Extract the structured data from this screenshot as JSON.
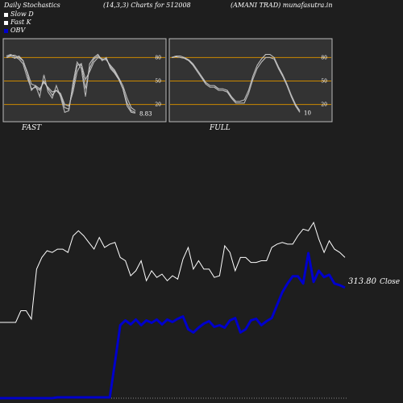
{
  "header": {
    "left": "Daily Stochastics",
    "center": "(14,3,3) Charts for 512008",
    "right": "(AMANI TRAD) munafasutra.in"
  },
  "legend": {
    "items": [
      {
        "label": "Slow  D",
        "color": "#ffffff"
      },
      {
        "label": "Fast K",
        "color": "#ffffff"
      },
      {
        "label": "OBV",
        "color": "#0000cc"
      }
    ]
  },
  "colors": {
    "background": "#1e1e1e",
    "panel": "#333333",
    "panel_border": "#bbbbbb",
    "level_line": "#cc8800",
    "line": "#ffffff",
    "obv": "#0000cc"
  },
  "chart_data": [
    {
      "type": "line",
      "title": "FAST",
      "ylim": [
        0,
        100
      ],
      "levels": [
        20,
        50,
        80
      ],
      "level_labels": [
        "20",
        "50",
        "80"
      ],
      "last_value_label": "8.83",
      "series": [
        {
          "values": [
            80,
            82,
            79,
            82,
            76,
            60,
            38,
            44,
            30,
            58,
            36,
            28,
            44,
            30,
            10,
            12,
            48,
            74,
            66,
            30,
            72,
            80,
            84,
            76,
            80,
            66,
            60,
            52,
            40,
            18,
            10,
            8.83
          ]
        },
        {
          "values": [
            82,
            84,
            81,
            78,
            72,
            54,
            40,
            42,
            38,
            50,
            40,
            32,
            38,
            32,
            16,
            14,
            42,
            70,
            72,
            40,
            66,
            78,
            82,
            78,
            78,
            68,
            62,
            52,
            40,
            22,
            12,
            10
          ]
        },
        {
          "values": [
            80,
            83,
            83,
            80,
            76,
            62,
            46,
            44,
            40,
            48,
            42,
            36,
            38,
            34,
            20,
            18,
            36,
            62,
            72,
            52,
            62,
            74,
            80,
            78,
            77,
            70,
            64,
            54,
            44,
            28,
            16,
            12
          ]
        }
      ]
    },
    {
      "type": "line",
      "title": "FULL",
      "ylim": [
        0,
        100
      ],
      "levels": [
        20,
        50,
        80
      ],
      "level_labels": [
        "20",
        "50",
        "80"
      ],
      "last_value_label": "10",
      "series": [
        {
          "values": [
            80,
            81,
            80,
            79,
            76,
            70,
            62,
            54,
            46,
            42,
            42,
            38,
            38,
            36,
            28,
            22,
            22,
            22,
            34,
            52,
            66,
            74,
            80,
            80,
            78,
            66,
            56,
            44,
            30,
            18,
            10
          ]
        },
        {
          "values": [
            80,
            82,
            82,
            80,
            77,
            72,
            64,
            56,
            48,
            44,
            44,
            40,
            40,
            38,
            30,
            24,
            24,
            26,
            38,
            56,
            70,
            78,
            84,
            84,
            80,
            68,
            58,
            46,
            32,
            20,
            12
          ]
        }
      ]
    },
    {
      "type": "line",
      "title": "",
      "last_value_label": "313.80",
      "close_label": "Close",
      "series": [
        {
          "name": "Close",
          "values": [
            274,
            274,
            274,
            274,
            281,
            281,
            276,
            306,
            313,
            317,
            316,
            318,
            318,
            316,
            326,
            329,
            326,
            322,
            318,
            325,
            319,
            321,
            322,
            313,
            311,
            302,
            305,
            311,
            299,
            305,
            301,
            303,
            299,
            302,
            300,
            312,
            319,
            306,
            311,
            306,
            306,
            301,
            302,
            320,
            316,
            305,
            313,
            313,
            310,
            310,
            311,
            311,
            319,
            321,
            322,
            321,
            321,
            326,
            330,
            329,
            334,
            324,
            316,
            323,
            318,
            316,
            313
          ]
        },
        {
          "name": "OBV",
          "values": [
            -110,
            -110,
            -110,
            -110,
            -110,
            -110,
            -110,
            -110,
            -110,
            -110,
            -110,
            -109,
            -109,
            -109,
            -109,
            -109,
            -109,
            -109,
            -109,
            -109,
            -109,
            -109,
            -65,
            -19,
            -13,
            -18,
            -12,
            -19,
            -13,
            -16,
            -12,
            -18,
            -12,
            -15,
            -11,
            -8,
            -24,
            -28,
            -22,
            -17,
            -14,
            -21,
            -19,
            -22,
            -13,
            -10,
            -28,
            -24,
            -13,
            -11,
            -19,
            -14,
            -10,
            6,
            22,
            33,
            42,
            42,
            33,
            71,
            35,
            49,
            41,
            44,
            33,
            31,
            28
          ]
        }
      ]
    }
  ]
}
